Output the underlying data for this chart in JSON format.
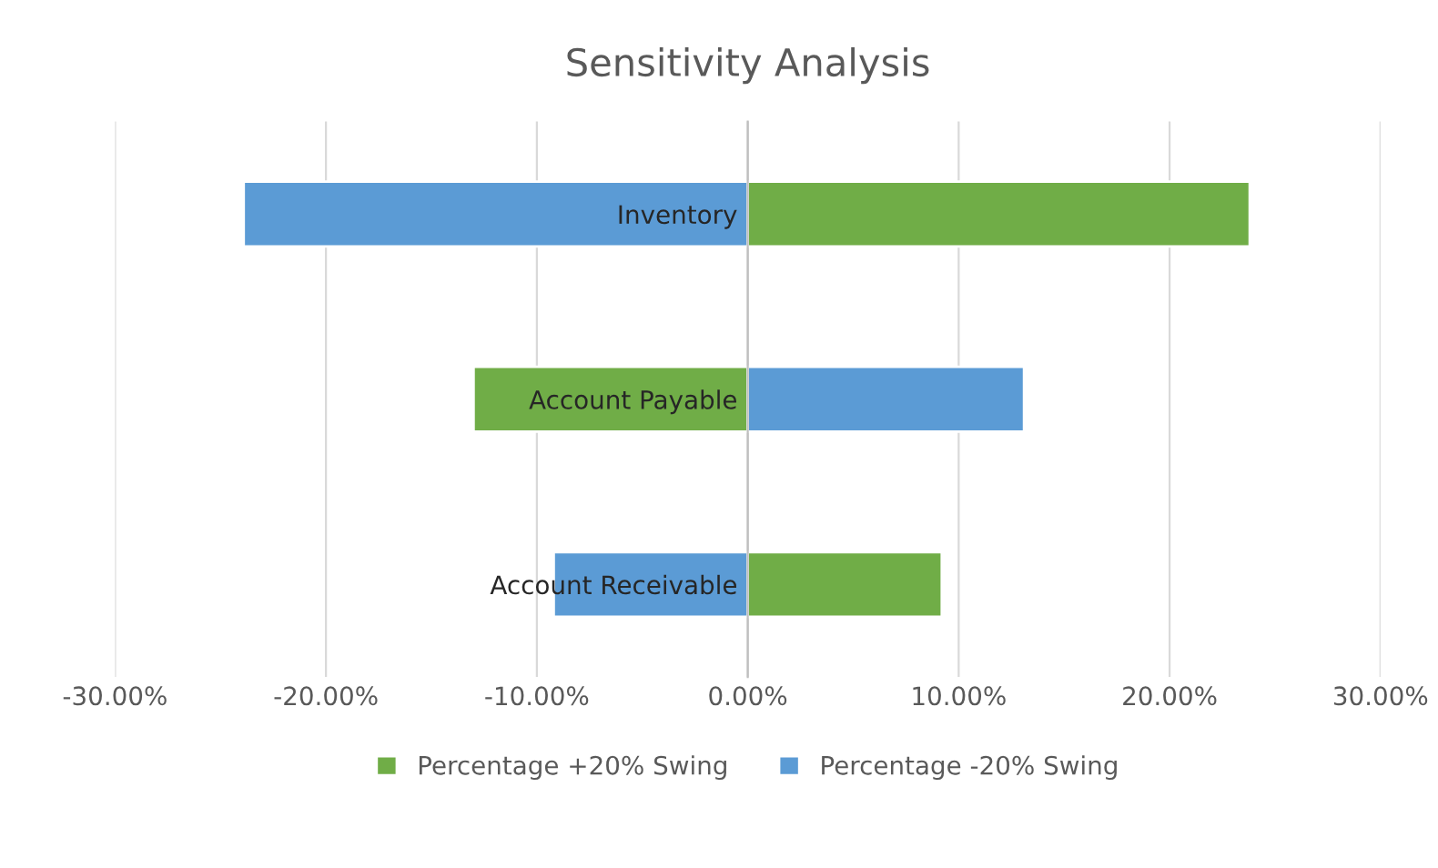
{
  "chart_data": {
    "type": "bar",
    "orientation": "horizontal",
    "title": "Sensitivity Analysis",
    "categories": [
      "Inventory",
      "Account Payable",
      "Account Receivable"
    ],
    "series": [
      {
        "name": "Percentage +20% Swing",
        "color": "#70ad47",
        "values": [
          23.8,
          -13.0,
          9.2
        ]
      },
      {
        "name": "Percentage -20% Swing",
        "color": "#5b9bd5",
        "values": [
          -23.9,
          13.1,
          -9.2
        ]
      }
    ],
    "xlim": [
      -30,
      30
    ],
    "xticks": [
      {
        "value": -30,
        "label": "-30.00%"
      },
      {
        "value": -20,
        "label": "-20.00%"
      },
      {
        "value": -10,
        "label": "-10.00%"
      },
      {
        "value": 0,
        "label": "0.00%"
      },
      {
        "value": 10,
        "label": "10.00%"
      },
      {
        "value": 20,
        "label": "20.00%"
      },
      {
        "value": 30,
        "label": "30.00%"
      }
    ],
    "grid": "x",
    "legend": "bottom",
    "stacked": true
  }
}
